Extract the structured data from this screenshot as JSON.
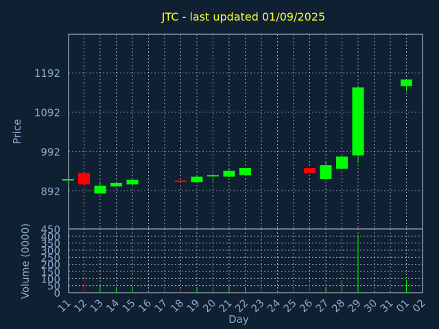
{
  "chart_data": {
    "type": "candlestick",
    "title": "JTC - last updated 01/09/2025",
    "xlabel": "Day",
    "price_panel": {
      "ylabel": "Price",
      "yticks": [
        892,
        992,
        1092,
        1192
      ],
      "ylim": [
        795,
        1290
      ],
      "grid": true
    },
    "volume_panel": {
      "ylabel": "Volume (0000)",
      "yticks": [
        0,
        50,
        100,
        150,
        200,
        250,
        300,
        350,
        400,
        450
      ],
      "ylim": [
        0,
        450
      ],
      "grid": true
    },
    "x_ticks": [
      "11",
      "12",
      "13",
      "14",
      "15",
      "16",
      "17",
      "18",
      "19",
      "20",
      "21",
      "22",
      "23",
      "24",
      "25",
      "26",
      "27",
      "28",
      "29",
      "30",
      "31",
      "01",
      "02"
    ],
    "candles": [
      {
        "day": "11",
        "open": 918,
        "close": 922,
        "high": 922,
        "low": 918,
        "volume": 0
      },
      {
        "day": "12",
        "open": 938,
        "close": 908,
        "high": 938,
        "low": 905,
        "volume": 105
      },
      {
        "day": "13",
        "open": 885,
        "close": 905,
        "high": 916,
        "low": 885,
        "volume": 55
      },
      {
        "day": "14",
        "open": 903,
        "close": 912,
        "high": 912,
        "low": 903,
        "volume": 30
      },
      {
        "day": "15",
        "open": 908,
        "close": 920,
        "high": 922,
        "low": 908,
        "volume": 45
      },
      {
        "day": "18",
        "open": 918,
        "close": 916,
        "high": 918,
        "low": 914,
        "volume": 10
      },
      {
        "day": "19",
        "open": 914,
        "close": 928,
        "high": 930,
        "low": 914,
        "volume": 35
      },
      {
        "day": "20",
        "open": 930,
        "close": 932,
        "high": 934,
        "low": 914,
        "volume": 25
      },
      {
        "day": "21",
        "open": 928,
        "close": 943,
        "high": 950,
        "low": 928,
        "volume": 50
      },
      {
        "day": "22",
        "open": 932,
        "close": 950,
        "high": 950,
        "low": 932,
        "volume": 35
      },
      {
        "day": "26",
        "open": 950,
        "close": 937,
        "high": 950,
        "low": 937,
        "volume": 60
      },
      {
        "day": "27",
        "open": 922,
        "close": 957,
        "high": 964,
        "low": 922,
        "volume": 35
      },
      {
        "day": "28",
        "open": 948,
        "close": 979,
        "high": 979,
        "low": 948,
        "volume": 75
      },
      {
        "day": "29",
        "open": 982,
        "close": 1155,
        "high": 1160,
        "low": 962,
        "volume": 405
      },
      {
        "day": "01",
        "open": 1158,
        "close": 1175,
        "high": 1175,
        "low": 1145,
        "volume": 90
      }
    ],
    "colors": {
      "up": "#00ff00",
      "down": "#ff0000",
      "background": "#0f2033",
      "grid": "#c8d0d8",
      "title": "#ffff33",
      "text": "#8aa8c8"
    }
  }
}
